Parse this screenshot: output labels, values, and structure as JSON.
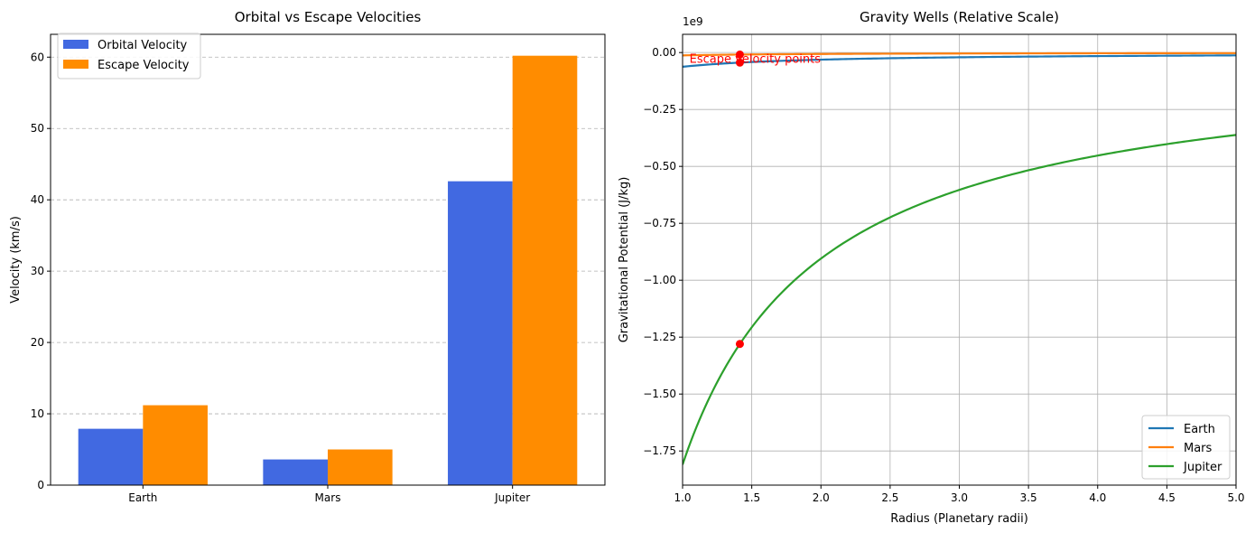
{
  "chart_data": [
    {
      "type": "bar",
      "title": "Orbital vs Escape Velocities",
      "xlabel": "",
      "ylabel": "Velocity (km/s)",
      "categories": [
        "Earth",
        "Mars",
        "Jupiter"
      ],
      "series": [
        {
          "name": "Orbital Velocity",
          "color": "#4169e1",
          "values": [
            7.9,
            3.6,
            42.6
          ]
        },
        {
          "name": "Escape Velocity",
          "color": "#ff8c00",
          "values": [
            11.2,
            5.0,
            60.2
          ]
        }
      ],
      "ylim": [
        0,
        63.2
      ],
      "yticks": [
        0,
        10,
        20,
        30,
        40,
        50,
        60
      ],
      "grid": "y-dashed",
      "legend": "top-left"
    },
    {
      "type": "line",
      "title": "Gravity Wells (Relative Scale)",
      "xlabel": "Radius (Planetary radii)",
      "ylabel": "Gravitational Potential (J/kg)",
      "offset_text": "1e9",
      "xlim": [
        1.0,
        5.0
      ],
      "ylim": [
        -1.9,
        0.08
      ],
      "xticks": [
        1.0,
        1.5,
        2.0,
        2.5,
        3.0,
        3.5,
        4.0,
        4.5,
        5.0
      ],
      "yticks": [
        0.0,
        -0.25,
        -0.5,
        -0.75,
        -1.0,
        -1.25,
        -1.5,
        -1.75
      ],
      "grid": true,
      "legend": "bottom-right",
      "series": [
        {
          "name": "Earth",
          "color": "#1f77b4",
          "surface_potential": -0.0625
        },
        {
          "name": "Mars",
          "color": "#ff7f0e",
          "surface_potential": -0.0126
        },
        {
          "name": "Jupiter",
          "color": "#2ca02c",
          "surface_potential": -1.81
        }
      ],
      "escape_points": {
        "x": 1.414,
        "y": [
          -0.0442,
          -0.0089,
          -1.28
        ],
        "color": "#ff0000"
      },
      "annotations": [
        {
          "text": "Escape velocity points",
          "x": 1.05,
          "y": -0.03,
          "color": "#ff0000"
        }
      ]
    }
  ]
}
